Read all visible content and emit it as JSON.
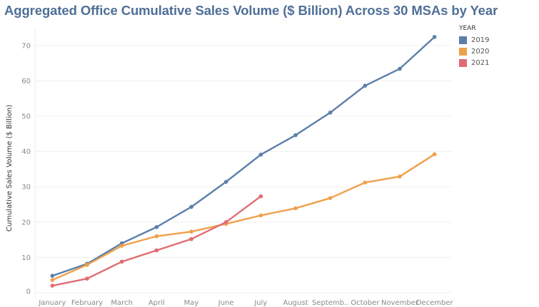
{
  "chart_data": {
    "type": "line",
    "title": "Aggregated Office Cumulative Sales Volume ($ Billion) Across 30 MSAs by Year",
    "xlabel": "",
    "ylabel": "Cumulative Sales Volume ($ Billion)",
    "categories": [
      "January",
      "February",
      "March",
      "April",
      "May",
      "June",
      "July",
      "August",
      "Septemb..",
      "October",
      "November",
      "December"
    ],
    "yticks": [
      0,
      10,
      20,
      30,
      40,
      50,
      60,
      70
    ],
    "ylim": [
      0,
      74
    ],
    "grid": true,
    "legend": {
      "title": "YEAR",
      "position": "top-right"
    },
    "series": [
      {
        "name": "2019",
        "color": "#5b7faa",
        "values": [
          4.8,
          8.2,
          14.0,
          18.6,
          24.3,
          31.4,
          39.1,
          44.6,
          51.0,
          58.6,
          63.4,
          72.4
        ]
      },
      {
        "name": "2020",
        "color": "#f0a04b",
        "values": [
          3.6,
          7.9,
          13.3,
          16.0,
          17.3,
          19.5,
          21.9,
          23.9,
          26.8,
          31.2,
          32.9,
          39.2
        ]
      },
      {
        "name": "2021",
        "color": "#e06c72",
        "values": [
          2.0,
          4.0,
          8.8,
          12.0,
          15.2,
          20.0,
          27.3
        ]
      }
    ]
  }
}
